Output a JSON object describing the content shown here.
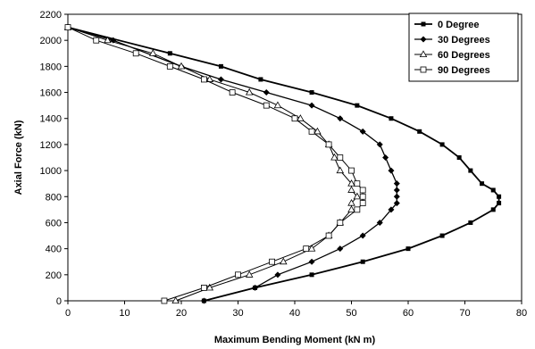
{
  "chart_data": {
    "type": "line",
    "xlabel": "Maximum Bending Moment (kN m)",
    "ylabel": "Axial Force (kN)",
    "xlim": [
      0,
      80
    ],
    "ylim": [
      0,
      2200
    ],
    "xticks": [
      "0",
      "10",
      "20",
      "30",
      "40",
      "50",
      "60",
      "70",
      "80"
    ],
    "yticks": [
      "0",
      "200",
      "400",
      "600",
      "800",
      "1000",
      "1200",
      "1400",
      "1600",
      "1800",
      "2000",
      "2200"
    ],
    "grid": false,
    "legend_position": "top-right",
    "series": [
      {
        "name": "0 Degree",
        "marker": "square-filled",
        "line_width": 1.8,
        "points": [
          [
            0,
            2100
          ],
          [
            18,
            1900
          ],
          [
            27,
            1800
          ],
          [
            34,
            1700
          ],
          [
            43,
            1600
          ],
          [
            51,
            1500
          ],
          [
            57,
            1400
          ],
          [
            62,
            1300
          ],
          [
            66,
            1200
          ],
          [
            69,
            1100
          ],
          [
            71,
            1000
          ],
          [
            73,
            900
          ],
          [
            75,
            850
          ],
          [
            76,
            800
          ],
          [
            76,
            750
          ],
          [
            75,
            700
          ],
          [
            71,
            600
          ],
          [
            66,
            500
          ],
          [
            60,
            400
          ],
          [
            52,
            300
          ],
          [
            43,
            200
          ],
          [
            33,
            100
          ],
          [
            24,
            0
          ]
        ]
      },
      {
        "name": "30 Degrees",
        "marker": "diamond-filled",
        "line_width": 1.3,
        "points": [
          [
            0,
            2100
          ],
          [
            8,
            2000
          ],
          [
            20,
            1800
          ],
          [
            27,
            1700
          ],
          [
            35,
            1600
          ],
          [
            43,
            1500
          ],
          [
            48,
            1400
          ],
          [
            52,
            1300
          ],
          [
            55,
            1200
          ],
          [
            56,
            1100
          ],
          [
            57,
            1000
          ],
          [
            58,
            900
          ],
          [
            58,
            850
          ],
          [
            58,
            800
          ],
          [
            58,
            750
          ],
          [
            57,
            700
          ],
          [
            55,
            600
          ],
          [
            52,
            500
          ],
          [
            48,
            400
          ],
          [
            43,
            300
          ],
          [
            37,
            200
          ],
          [
            33,
            100
          ],
          [
            24,
            0
          ]
        ]
      },
      {
        "name": "60 Degrees",
        "marker": "triangle-open",
        "line_width": 1,
        "points": [
          [
            0,
            2100
          ],
          [
            7,
            2000
          ],
          [
            15,
            1900
          ],
          [
            20,
            1800
          ],
          [
            25,
            1700
          ],
          [
            32,
            1600
          ],
          [
            37,
            1500
          ],
          [
            41,
            1400
          ],
          [
            44,
            1300
          ],
          [
            46,
            1200
          ],
          [
            47,
            1100
          ],
          [
            48,
            1000
          ],
          [
            50,
            900
          ],
          [
            50,
            850
          ],
          [
            51,
            800
          ],
          [
            50,
            750
          ],
          [
            50,
            700
          ],
          [
            48,
            600
          ],
          [
            46,
            500
          ],
          [
            43,
            400
          ],
          [
            38,
            300
          ],
          [
            32,
            200
          ],
          [
            25,
            100
          ],
          [
            19,
            0
          ]
        ]
      },
      {
        "name": "90 Degrees",
        "marker": "square-open",
        "line_width": 1,
        "points": [
          [
            0,
            2100
          ],
          [
            5,
            2000
          ],
          [
            12,
            1900
          ],
          [
            18,
            1800
          ],
          [
            24,
            1700
          ],
          [
            29,
            1600
          ],
          [
            35,
            1500
          ],
          [
            40,
            1400
          ],
          [
            43,
            1300
          ],
          [
            46,
            1200
          ],
          [
            48,
            1100
          ],
          [
            50,
            1000
          ],
          [
            51,
            900
          ],
          [
            52,
            850
          ],
          [
            52,
            800
          ],
          [
            52,
            750
          ],
          [
            51,
            700
          ],
          [
            48,
            600
          ],
          [
            46,
            500
          ],
          [
            42,
            400
          ],
          [
            36,
            300
          ],
          [
            30,
            200
          ],
          [
            24,
            100
          ],
          [
            17,
            0
          ]
        ]
      }
    ]
  }
}
